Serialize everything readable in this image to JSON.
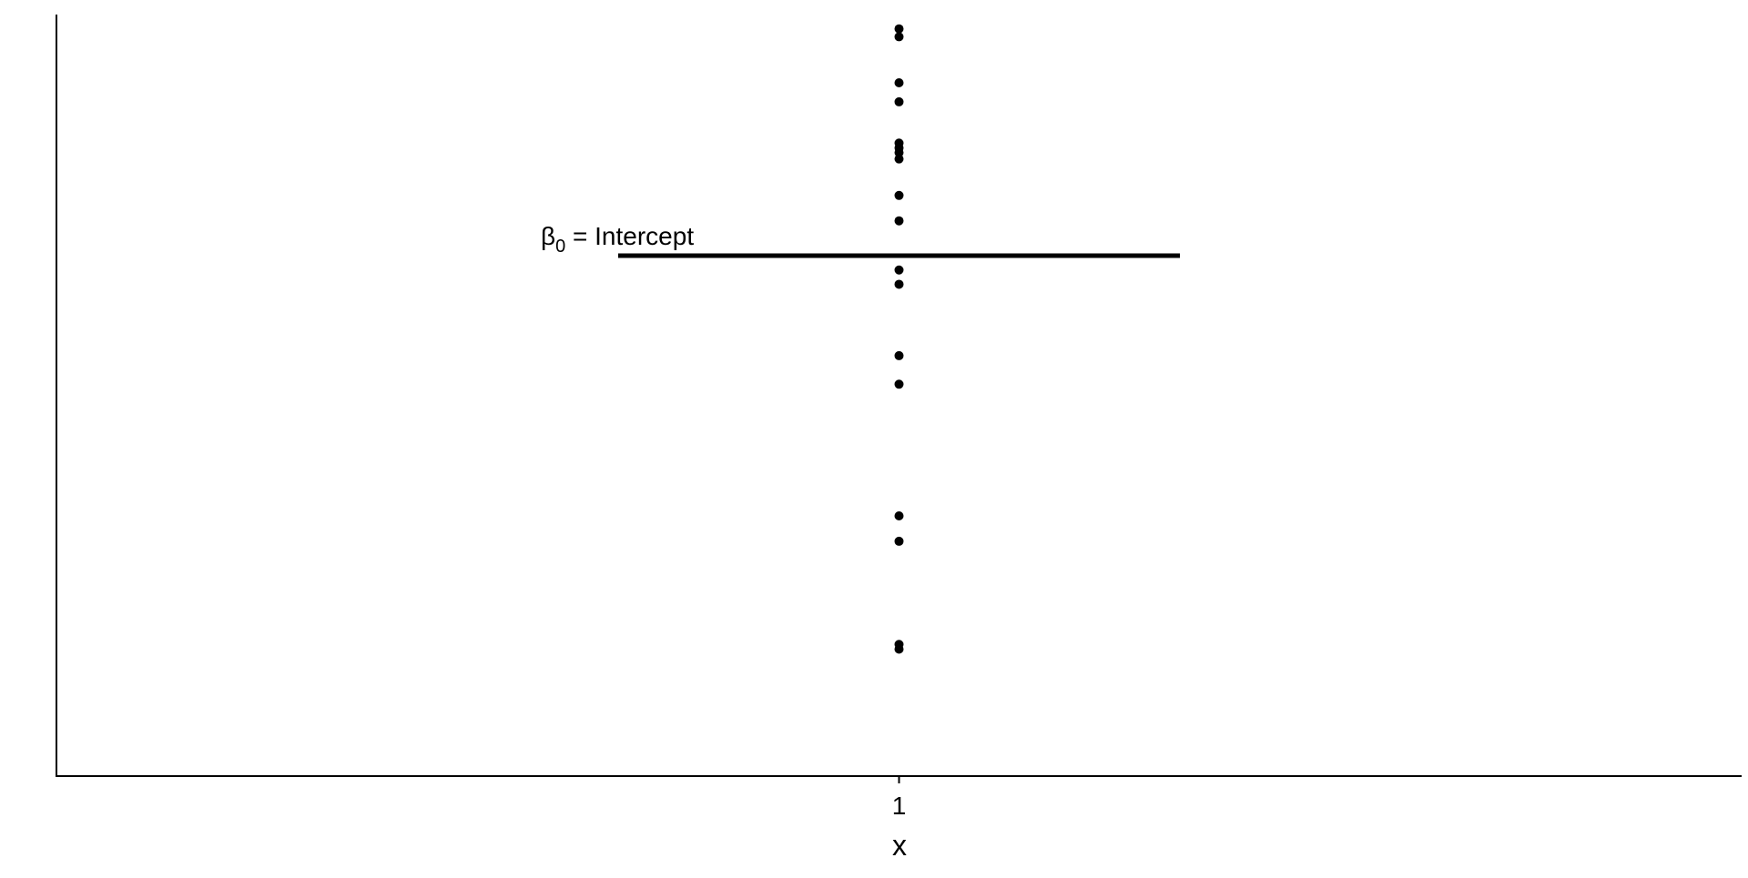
{
  "chart_data": {
    "type": "scatter",
    "title": "",
    "xlabel": "x",
    "ylabel": "",
    "categories": [
      "1"
    ],
    "x_tick_labels": [
      "1"
    ],
    "series": [
      {
        "x": "1",
        "values": [
          0.8,
          0.83,
          1.48,
          1.64,
          2.47,
          2.65,
          3.1,
          3.19,
          3.5,
          3.66,
          3.89,
          3.93,
          3.96,
          3.99,
          4.25,
          4.37,
          4.66,
          4.71
        ]
      }
    ],
    "intercept": {
      "value": 3.28,
      "label_greek": "β",
      "label_subscript": "0",
      "label_text": " = Intercept"
    },
    "ylim": [
      0.0,
      4.8
    ],
    "y_ticks_shown": false,
    "grid": false,
    "legend": "none"
  }
}
